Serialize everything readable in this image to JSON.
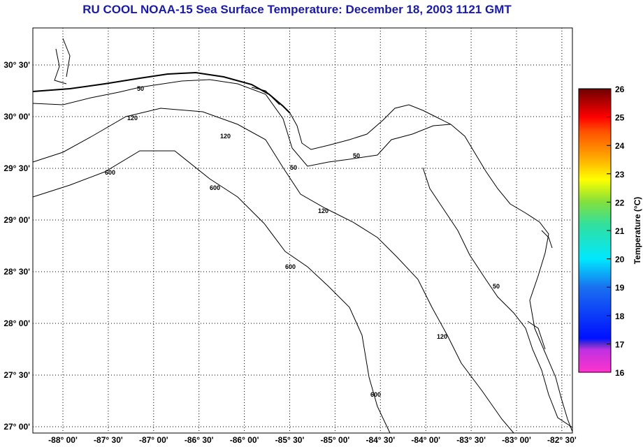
{
  "title": "RU COOL  NOAA-15  Sea Surface Temperature:  December 18, 2003 1121 GMT",
  "map": {
    "lon_labels": [
      "-88° 00'",
      "-87° 30'",
      "-87° 00'",
      "-86° 30'",
      "-86° 00'",
      "-85° 30'",
      "-85° 00'",
      "-84° 30'",
      "-84° 00'",
      "-83° 30'",
      "-83° 00'",
      "-82° 30'"
    ],
    "lat_labels": [
      "30° 30'",
      "30° 00'",
      "29° 30'",
      "29° 00'",
      "28° 30'",
      "28° 00'",
      "27° 30'",
      "27° 00'"
    ],
    "contour_labels": [
      "50",
      "120",
      "600"
    ]
  },
  "colorbar": {
    "label": "Temperature (°C)",
    "ticks": [
      "26",
      "25",
      "24",
      "23",
      "22",
      "21",
      "20",
      "19",
      "18",
      "17",
      "16"
    ],
    "range": [
      16,
      26
    ]
  }
}
